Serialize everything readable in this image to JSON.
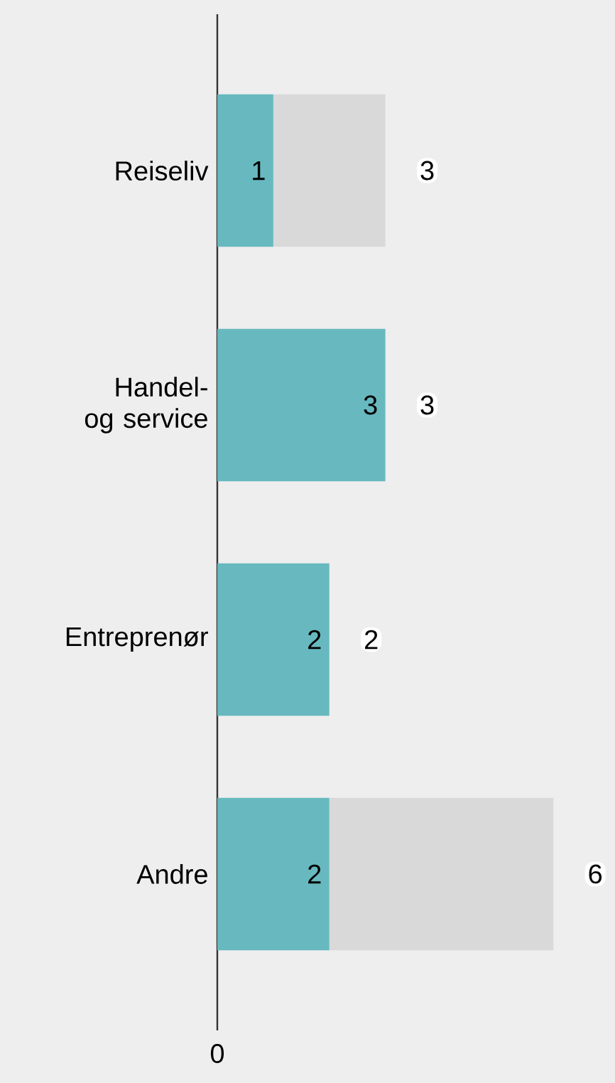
{
  "chart_data": {
    "type": "bar",
    "orientation": "horizontal",
    "stacked": true,
    "categories": [
      "Reiseliv",
      "Handel- og service",
      "Entreprenør",
      "Andre"
    ],
    "series": [
      {
        "color": "#67b9bf",
        "values": [
          1,
          3,
          2,
          2
        ],
        "value_labels": [
          "1",
          "3",
          "2",
          "2"
        ]
      },
      {
        "color": "#d9d9d9",
        "values": [
          2,
          0,
          0,
          4
        ]
      }
    ],
    "totals": [
      "3",
      "3",
      "2",
      "6"
    ],
    "annotations": [
      "0"
    ],
    "xlim": [
      0,
      7.1
    ]
  }
}
